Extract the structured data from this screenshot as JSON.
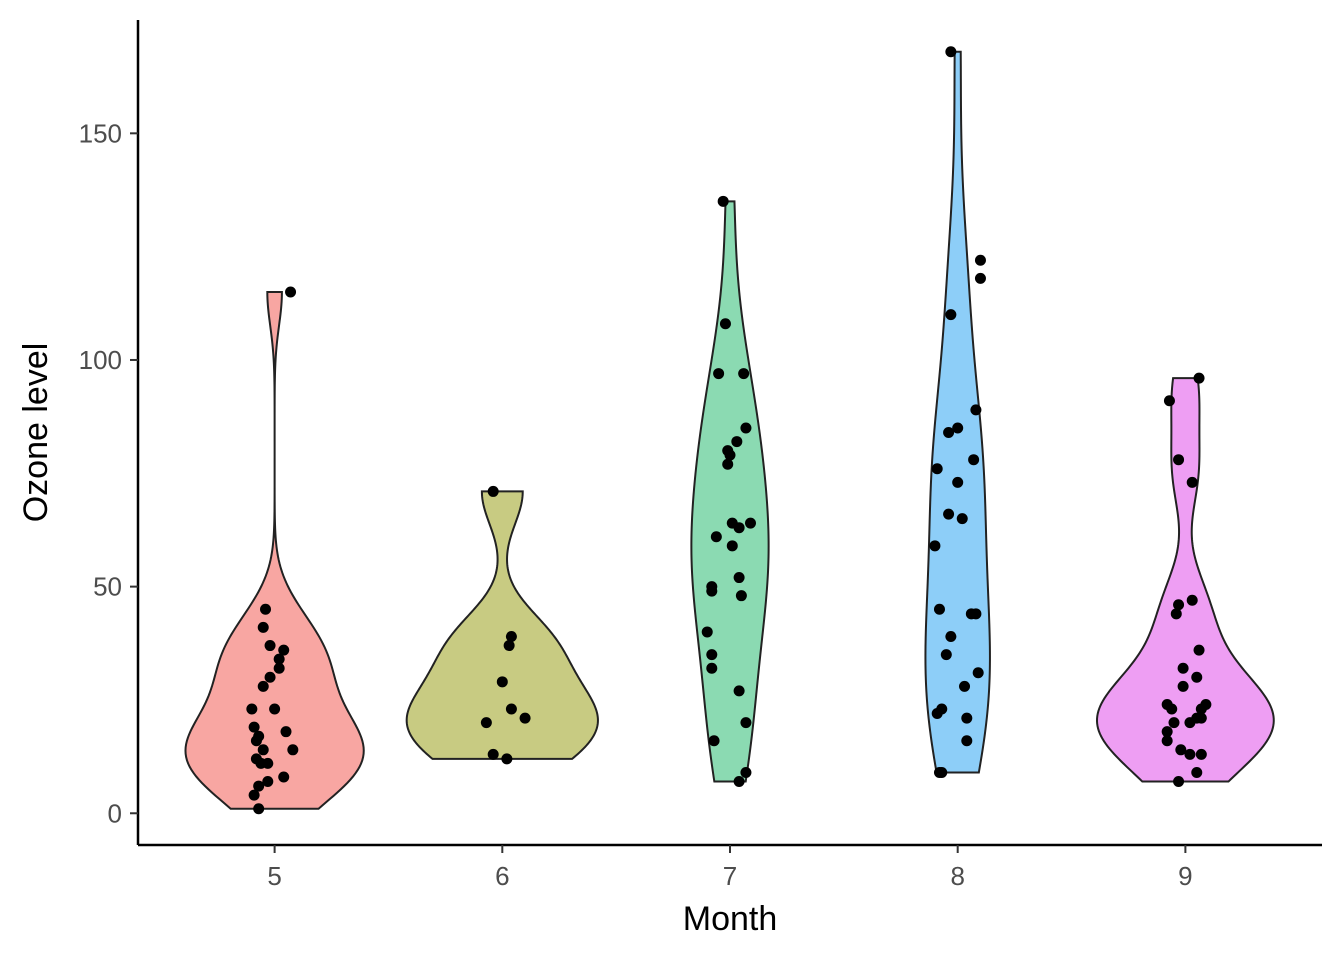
{
  "chart_data": {
    "type": "violin",
    "xlabel": "Month",
    "ylabel": "Ozone level",
    "categories": [
      "5",
      "6",
      "7",
      "8",
      "9"
    ],
    "ylim": [
      -7,
      175
    ],
    "yticks": [
      0,
      50,
      100,
      150
    ],
    "ytick_labels": [
      "0",
      "50",
      "100",
      "150"
    ],
    "grid": false,
    "legend": "none",
    "series": [
      {
        "category": "5",
        "color": "#F8A6A2",
        "points": [
          {
            "dx": 0.07,
            "y": 115
          },
          {
            "dx": -0.04,
            "y": 45
          },
          {
            "dx": -0.05,
            "y": 41
          },
          {
            "dx": -0.02,
            "y": 37
          },
          {
            "dx": 0.04,
            "y": 36
          },
          {
            "dx": 0.02,
            "y": 34
          },
          {
            "dx": 0.02,
            "y": 32
          },
          {
            "dx": -0.02,
            "y": 30
          },
          {
            "dx": -0.05,
            "y": 28
          },
          {
            "dx": -0.1,
            "y": 23
          },
          {
            "dx": 0.0,
            "y": 23
          },
          {
            "dx": -0.09,
            "y": 19
          },
          {
            "dx": 0.05,
            "y": 18
          },
          {
            "dx": -0.07,
            "y": 17
          },
          {
            "dx": -0.08,
            "y": 16
          },
          {
            "dx": -0.05,
            "y": 14
          },
          {
            "dx": 0.08,
            "y": 14
          },
          {
            "dx": -0.08,
            "y": 12
          },
          {
            "dx": -0.06,
            "y": 11
          },
          {
            "dx": -0.03,
            "y": 11
          },
          {
            "dx": 0.04,
            "y": 8
          },
          {
            "dx": -0.03,
            "y": 7
          },
          {
            "dx": -0.07,
            "y": 6
          },
          {
            "dx": -0.09,
            "y": 4
          },
          {
            "dx": -0.07,
            "y": 1
          }
        ]
      },
      {
        "category": "6",
        "color": "#C8CB82",
        "points": [
          {
            "dx": -0.04,
            "y": 71
          },
          {
            "dx": 0.04,
            "y": 39
          },
          {
            "dx": 0.03,
            "y": 37
          },
          {
            "dx": 0.0,
            "y": 29
          },
          {
            "dx": 0.04,
            "y": 23
          },
          {
            "dx": 0.1,
            "y": 21
          },
          {
            "dx": -0.07,
            "y": 20
          },
          {
            "dx": -0.04,
            "y": 13
          },
          {
            "dx": 0.02,
            "y": 12
          }
        ]
      },
      {
        "category": "7",
        "color": "#8BDAB2",
        "points": [
          {
            "dx": -0.03,
            "y": 135
          },
          {
            "dx": -0.02,
            "y": 108
          },
          {
            "dx": -0.05,
            "y": 97
          },
          {
            "dx": 0.06,
            "y": 97
          },
          {
            "dx": 0.07,
            "y": 85
          },
          {
            "dx": 0.03,
            "y": 82
          },
          {
            "dx": -0.01,
            "y": 80
          },
          {
            "dx": 0.0,
            "y": 79
          },
          {
            "dx": -0.01,
            "y": 77
          },
          {
            "dx": 0.01,
            "y": 64
          },
          {
            "dx": 0.04,
            "y": 63
          },
          {
            "dx": 0.09,
            "y": 64
          },
          {
            "dx": -0.06,
            "y": 61
          },
          {
            "dx": 0.01,
            "y": 59
          },
          {
            "dx": 0.04,
            "y": 52
          },
          {
            "dx": -0.08,
            "y": 50
          },
          {
            "dx": -0.08,
            "y": 49
          },
          {
            "dx": 0.05,
            "y": 48
          },
          {
            "dx": -0.1,
            "y": 40
          },
          {
            "dx": -0.08,
            "y": 35
          },
          {
            "dx": -0.08,
            "y": 32
          },
          {
            "dx": 0.04,
            "y": 27
          },
          {
            "dx": 0.07,
            "y": 20
          },
          {
            "dx": -0.07,
            "y": 16
          },
          {
            "dx": 0.07,
            "y": 9
          },
          {
            "dx": 0.04,
            "y": 7
          }
        ]
      },
      {
        "category": "8",
        "color": "#8DCEF8",
        "points": [
          {
            "dx": -0.03,
            "y": 168
          },
          {
            "dx": 0.1,
            "y": 122
          },
          {
            "dx": 0.1,
            "y": 118
          },
          {
            "dx": -0.03,
            "y": 110
          },
          {
            "dx": 0.08,
            "y": 89
          },
          {
            "dx": 0.0,
            "y": 85
          },
          {
            "dx": -0.04,
            "y": 84
          },
          {
            "dx": 0.07,
            "y": 78
          },
          {
            "dx": -0.09,
            "y": 76
          },
          {
            "dx": 0.0,
            "y": 73
          },
          {
            "dx": -0.04,
            "y": 66
          },
          {
            "dx": 0.02,
            "y": 65
          },
          {
            "dx": -0.1,
            "y": 59
          },
          {
            "dx": -0.08,
            "y": 45
          },
          {
            "dx": 0.06,
            "y": 44
          },
          {
            "dx": 0.08,
            "y": 44
          },
          {
            "dx": -0.03,
            "y": 39
          },
          {
            "dx": -0.05,
            "y": 35
          },
          {
            "dx": 0.09,
            "y": 31
          },
          {
            "dx": 0.03,
            "y": 28
          },
          {
            "dx": -0.07,
            "y": 23
          },
          {
            "dx": -0.09,
            "y": 22
          },
          {
            "dx": 0.04,
            "y": 21
          },
          {
            "dx": 0.04,
            "y": 16
          },
          {
            "dx": -0.08,
            "y": 9
          },
          {
            "dx": -0.07,
            "y": 9
          }
        ]
      },
      {
        "category": "9",
        "color": "#EE9EF3",
        "points": [
          {
            "dx": 0.06,
            "y": 96
          },
          {
            "dx": -0.07,
            "y": 91
          },
          {
            "dx": -0.03,
            "y": 78
          },
          {
            "dx": 0.03,
            "y": 73
          },
          {
            "dx": 0.03,
            "y": 47
          },
          {
            "dx": -0.03,
            "y": 46
          },
          {
            "dx": -0.04,
            "y": 44
          },
          {
            "dx": 0.06,
            "y": 36
          },
          {
            "dx": -0.01,
            "y": 32
          },
          {
            "dx": 0.05,
            "y": 30
          },
          {
            "dx": -0.01,
            "y": 28
          },
          {
            "dx": -0.08,
            "y": 24
          },
          {
            "dx": -0.06,
            "y": 23
          },
          {
            "dx": 0.07,
            "y": 23
          },
          {
            "dx": 0.09,
            "y": 24
          },
          {
            "dx": 0.05,
            "y": 21
          },
          {
            "dx": 0.07,
            "y": 21
          },
          {
            "dx": -0.05,
            "y": 20
          },
          {
            "dx": 0.02,
            "y": 20
          },
          {
            "dx": -0.08,
            "y": 18
          },
          {
            "dx": -0.08,
            "y": 16
          },
          {
            "dx": -0.02,
            "y": 14
          },
          {
            "dx": 0.02,
            "y": 13
          },
          {
            "dx": 0.07,
            "y": 13
          },
          {
            "dx": 0.05,
            "y": 9
          },
          {
            "dx": -0.03,
            "y": 7
          }
        ]
      }
    ]
  }
}
